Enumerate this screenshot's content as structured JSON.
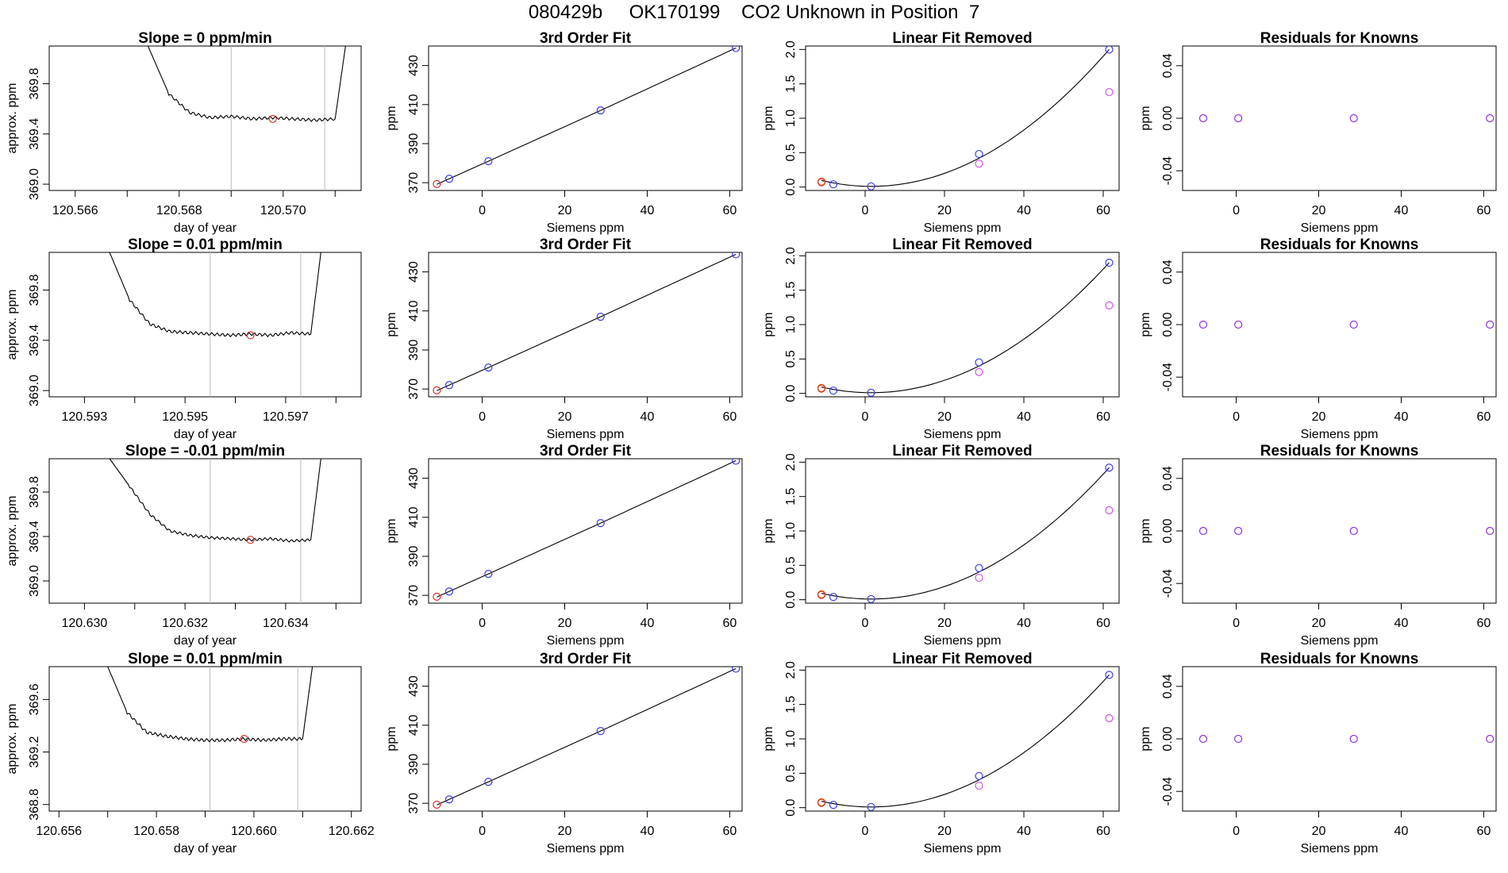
{
  "figure": {
    "title": "080429b     OK170199    CO2 Unknown in Position  7",
    "colors": {
      "unknown": "#e0302f",
      "known": "#3a3af0",
      "fit_residual": "#d050e8",
      "reference": "#e08020",
      "residual_known": "#9030e0",
      "trace": "#000000",
      "window_line": "#bbbbbb"
    }
  },
  "chart_data": [
    {
      "type": "line",
      "title": "Slope =  0  ppm/min",
      "xlabel": "day of year",
      "ylabel": "approx. ppm",
      "xlim": [
        120.5655,
        120.5715
      ],
      "ylim": [
        368.95,
        370.1
      ],
      "xticks": [
        "120.566",
        "120.568",
        "120.570"
      ],
      "yticks": [
        "369.0",
        "369.4",
        "369.8"
      ],
      "xticks_minor": [
        120.567,
        120.569,
        120.571
      ],
      "trace_x": [
        120.5674,
        120.5678,
        120.5682,
        120.5686,
        120.569,
        120.5694,
        120.5698,
        120.5702,
        120.5706,
        120.571,
        120.5712
      ],
      "trace_y": [
        370.1,
        369.72,
        369.57,
        369.53,
        369.54,
        369.52,
        369.53,
        369.52,
        369.51,
        369.52,
        370.1
      ],
      "window": [
        120.569,
        120.5708
      ],
      "unknown_point": [
        120.5698,
        369.52
      ]
    },
    {
      "type": "line",
      "title": "Slope =  0.01  ppm/min",
      "xlabel": "day of year",
      "ylabel": "approx. ppm",
      "xlim": [
        120.5923,
        120.5985
      ],
      "ylim": [
        368.95,
        370.1
      ],
      "xticks": [
        "120.593",
        "120.595",
        "120.597"
      ],
      "yticks": [
        "369.0",
        "369.4",
        "369.8"
      ],
      "xticks_minor": [
        120.594,
        120.596,
        120.598
      ],
      "trace_x": [
        120.5935,
        120.5939,
        120.5943,
        120.5947,
        120.5951,
        120.5955,
        120.5959,
        120.5963,
        120.5967,
        120.5971,
        120.5975,
        120.5977
      ],
      "trace_y": [
        370.1,
        369.72,
        369.53,
        369.47,
        369.46,
        369.45,
        369.44,
        369.45,
        369.44,
        369.46,
        369.45,
        370.1
      ],
      "window": [
        120.5955,
        120.5973
      ],
      "unknown_point": [
        120.5963,
        369.44
      ]
    },
    {
      "type": "line",
      "title": "Slope =  -0.01  ppm/min",
      "xlabel": "day of year",
      "ylabel": "approx. ppm",
      "xlim": [
        120.6293,
        120.6355
      ],
      "ylim": [
        368.8,
        370.1
      ],
      "xticks": [
        "120.630",
        "120.632",
        "120.634"
      ],
      "yticks": [
        "369.0",
        "369.4",
        "369.8"
      ],
      "xticks_minor": [
        120.631,
        120.633,
        120.635
      ],
      "trace_x": [
        120.6305,
        120.6309,
        120.6313,
        120.6317,
        120.6321,
        120.6325,
        120.6329,
        120.6333,
        120.6337,
        120.6341,
        120.6345,
        120.6347
      ],
      "trace_y": [
        370.1,
        369.85,
        369.6,
        369.45,
        369.41,
        369.39,
        369.38,
        369.37,
        369.38,
        369.36,
        369.37,
        370.1
      ],
      "window": [
        120.6325,
        120.6343
      ],
      "unknown_point": [
        120.6333,
        369.37
      ]
    },
    {
      "type": "line",
      "title": "Slope =  0.01  ppm/min",
      "xlabel": "day of year",
      "ylabel": "approx. ppm",
      "xlim": [
        120.6558,
        120.6622
      ],
      "ylim": [
        368.75,
        369.85
      ],
      "xticks": [
        "120.656",
        "120.658",
        "120.660",
        "120.662"
      ],
      "yticks": [
        "368.8",
        "369.2",
        "369.6"
      ],
      "xticks_minor": [
        120.657,
        120.659,
        120.661
      ],
      "trace_x": [
        120.657,
        120.6574,
        120.6578,
        120.6582,
        120.6586,
        120.659,
        120.6594,
        120.6598,
        120.6602,
        120.6606,
        120.661,
        120.6612
      ],
      "trace_y": [
        369.85,
        369.5,
        369.35,
        369.32,
        369.3,
        369.29,
        369.29,
        369.3,
        369.29,
        369.3,
        369.3,
        369.85
      ],
      "window": [
        120.6591,
        120.6609
      ],
      "unknown_point": [
        120.6598,
        369.3
      ]
    },
    {
      "type": "scatter",
      "title": "3rd Order Fit",
      "xlabel": "Siemens ppm",
      "ylabel": "ppm",
      "xlim": [
        -13,
        63
      ],
      "ylim": [
        366,
        440
      ],
      "xticks": [
        "0",
        "20",
        "40",
        "60"
      ],
      "yticks": [
        "370",
        "390",
        "410",
        "430"
      ],
      "known_x": [
        -8,
        1.5,
        28.7,
        61.5
      ],
      "known_y": [
        372,
        381,
        407,
        439
      ],
      "unknown": [
        -11,
        369.3
      ]
    },
    {
      "type": "scatter",
      "title": "3rd Order Fit",
      "xlabel": "Siemens ppm",
      "ylabel": "ppm",
      "xlim": [
        -13,
        63
      ],
      "ylim": [
        366,
        440
      ],
      "xticks": [
        "0",
        "20",
        "40",
        "60"
      ],
      "yticks": [
        "370",
        "390",
        "410",
        "430"
      ],
      "known_x": [
        -8,
        1.5,
        28.7,
        61.5
      ],
      "known_y": [
        372,
        381,
        407,
        439
      ],
      "unknown": [
        -11,
        369.3
      ]
    },
    {
      "type": "scatter",
      "title": "3rd Order Fit",
      "xlabel": "Siemens ppm",
      "ylabel": "ppm",
      "xlim": [
        -13,
        63
      ],
      "ylim": [
        366,
        440
      ],
      "xticks": [
        "0",
        "20",
        "40",
        "60"
      ],
      "yticks": [
        "370",
        "390",
        "410",
        "430"
      ],
      "known_x": [
        -8,
        1.5,
        28.7,
        61.5
      ],
      "known_y": [
        372,
        381,
        407,
        439
      ],
      "unknown": [
        -11,
        369.3
      ]
    },
    {
      "type": "scatter",
      "title": "3rd Order Fit",
      "xlabel": "Siemens ppm",
      "ylabel": "ppm",
      "xlim": [
        -13,
        63
      ],
      "ylim": [
        366,
        440
      ],
      "xticks": [
        "0",
        "20",
        "40",
        "60"
      ],
      "yticks": [
        "370",
        "390",
        "410",
        "430"
      ],
      "known_x": [
        -8,
        1.5,
        28.7,
        61.5
      ],
      "known_y": [
        372,
        381,
        407,
        439
      ],
      "unknown": [
        -11,
        369.3
      ]
    },
    {
      "type": "scatter",
      "title": "Linear Fit Removed",
      "xlabel": "Siemens ppm",
      "ylabel": "ppm",
      "xlim": [
        -15,
        64
      ],
      "ylim": [
        -0.05,
        2.05
      ],
      "xticks": [
        "0",
        "20",
        "40",
        "60"
      ],
      "yticks": [
        "0.0",
        "0.5",
        "1.0",
        "1.5",
        "2.0"
      ],
      "known_x": [
        -8,
        1.5,
        28.7,
        61.5
      ],
      "known_y": [
        0.04,
        0.01,
        0.48,
        2.0
      ],
      "fit_residual_x": [
        28.7,
        61.5
      ],
      "fit_residual_y": [
        0.34,
        1.38
      ],
      "reference": [
        -11,
        0.08
      ],
      "unknown": [
        -11,
        0.07
      ],
      "curve_coeffs": [
        0.00544,
        0.000563,
        -1.2e-05
      ]
    },
    {
      "type": "scatter",
      "title": "Linear Fit Removed",
      "xlabel": "Siemens ppm",
      "ylabel": "ppm",
      "xlim": [
        -15,
        64
      ],
      "ylim": [
        -0.05,
        2.05
      ],
      "xticks": [
        "0",
        "20",
        "40",
        "60"
      ],
      "yticks": [
        "0.0",
        "0.5",
        "1.0",
        "1.5",
        "2.0"
      ],
      "known_x": [
        -8,
        1.5,
        28.7,
        61.5
      ],
      "known_y": [
        0.04,
        0.01,
        0.45,
        1.9
      ],
      "fit_residual_x": [
        28.7,
        61.5
      ],
      "fit_residual_y": [
        0.31,
        1.28
      ],
      "reference": [
        -11,
        0.08
      ],
      "unknown": [
        -11,
        0.07
      ],
      "curve_coeffs": [
        0.00545,
        0.000487,
        -1.1e-05
      ]
    },
    {
      "type": "scatter",
      "title": "Linear Fit Removed",
      "xlabel": "Siemens ppm",
      "ylabel": "ppm",
      "xlim": [
        -15,
        64
      ],
      "ylim": [
        -0.05,
        2.05
      ],
      "xticks": [
        "0",
        "20",
        "40",
        "60"
      ],
      "yticks": [
        "0.0",
        "0.5",
        "1.0",
        "1.5",
        "2.0"
      ],
      "known_x": [
        -8,
        1.5,
        28.7,
        61.5
      ],
      "known_y": [
        0.04,
        0.01,
        0.46,
        1.92
      ],
      "fit_residual_x": [
        28.7,
        61.5
      ],
      "fit_residual_y": [
        0.32,
        1.3
      ],
      "reference": [
        -11,
        0.08
      ],
      "unknown": [
        -11,
        0.07
      ],
      "curve_coeffs": [
        0.00545,
        0.000502,
        -1.1e-05
      ]
    },
    {
      "type": "scatter",
      "title": "Linear Fit Removed",
      "xlabel": "Siemens ppm",
      "ylabel": "ppm",
      "xlim": [
        -15,
        64
      ],
      "ylim": [
        -0.05,
        2.05
      ],
      "xticks": [
        "0",
        "20",
        "40",
        "60"
      ],
      "yticks": [
        "0.0",
        "0.5",
        "1.0",
        "1.5",
        "2.0"
      ],
      "known_x": [
        -8,
        1.5,
        28.7,
        61.5
      ],
      "known_y": [
        0.04,
        0.01,
        0.46,
        1.93
      ],
      "fit_residual_x": [
        28.7,
        61.5
      ],
      "fit_residual_y": [
        0.32,
        1.3
      ],
      "reference": [
        -11,
        0.08
      ],
      "unknown": [
        -11,
        0.07
      ],
      "curve_coeffs": [
        0.00545,
        0.000508,
        -1.1e-05
      ]
    },
    {
      "type": "scatter",
      "title": "Residuals for Knowns",
      "xlabel": "Siemens ppm",
      "ylabel": "ppm",
      "xlim": [
        -13,
        63
      ],
      "ylim": [
        -0.055,
        0.055
      ],
      "xticks": [
        "0",
        "20",
        "40",
        "60"
      ],
      "yticks": [
        "-0.04",
        "0.00",
        "0.04"
      ],
      "x": [
        -8,
        0.5,
        28.5,
        61.5
      ],
      "y": [
        0,
        0,
        0,
        0
      ]
    },
    {
      "type": "scatter",
      "title": "Residuals for Knowns",
      "xlabel": "Siemens ppm",
      "ylabel": "ppm",
      "xlim": [
        -13,
        63
      ],
      "ylim": [
        -0.055,
        0.055
      ],
      "xticks": [
        "0",
        "20",
        "40",
        "60"
      ],
      "yticks": [
        "-0.04",
        "0.00",
        "0.04"
      ],
      "x": [
        -8,
        0.5,
        28.5,
        61.5
      ],
      "y": [
        0,
        0,
        0,
        0
      ]
    },
    {
      "type": "scatter",
      "title": "Residuals for Knowns",
      "xlabel": "Siemens ppm",
      "ylabel": "ppm",
      "xlim": [
        -13,
        63
      ],
      "ylim": [
        -0.055,
        0.055
      ],
      "xticks": [
        "0",
        "20",
        "40",
        "60"
      ],
      "yticks": [
        "-0.04",
        "0.00",
        "0.04"
      ],
      "x": [
        -8,
        0.5,
        28.5,
        61.5
      ],
      "y": [
        0,
        0,
        0,
        0
      ]
    },
    {
      "type": "scatter",
      "title": "Residuals for Knowns",
      "xlabel": "Siemens ppm",
      "ylabel": "ppm",
      "xlim": [
        -13,
        63
      ],
      "ylim": [
        -0.055,
        0.055
      ],
      "xticks": [
        "0",
        "20",
        "40",
        "60"
      ],
      "yticks": [
        "-0.04",
        "0.00",
        "0.04"
      ],
      "x": [
        -8,
        0.5,
        28.5,
        61.5
      ],
      "y": [
        0,
        0,
        0,
        0
      ]
    }
  ]
}
